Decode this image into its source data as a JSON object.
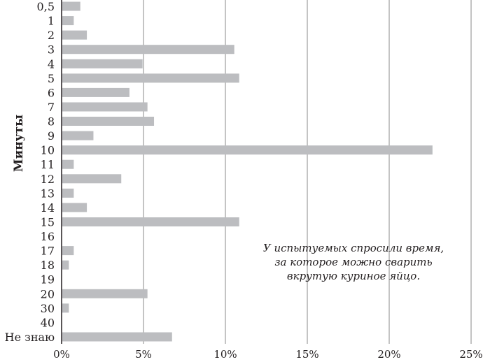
{
  "chart_data": {
    "type": "bar",
    "orientation": "horizontal",
    "ylabel": "Минуты",
    "xlabel": "",
    "categories": [
      "0,5",
      "1",
      "2",
      "3",
      "4",
      "5",
      "6",
      "7",
      "8",
      "9",
      "10",
      "11",
      "12",
      "13",
      "14",
      "15",
      "16",
      "17",
      "18",
      "19",
      "20",
      "30",
      "40",
      "Не знаю"
    ],
    "values": [
      1.1,
      0.7,
      1.5,
      10.5,
      4.9,
      10.8,
      4.1,
      5.2,
      5.6,
      1.9,
      22.6,
      0.7,
      3.6,
      0.7,
      1.5,
      10.8,
      0,
      0.7,
      0.4,
      0,
      5.2,
      0.4,
      0,
      6.7
    ],
    "xlim": [
      0,
      25
    ],
    "xticks": [
      "0%",
      "5%",
      "10%",
      "15%",
      "20%",
      "25%"
    ],
    "grid": true,
    "bar_color": "#bcbdc0",
    "annotation": [
      "У испытуемых спросили время,",
      "за которое можно сварить",
      "вкрутую куриное яйцо."
    ]
  }
}
